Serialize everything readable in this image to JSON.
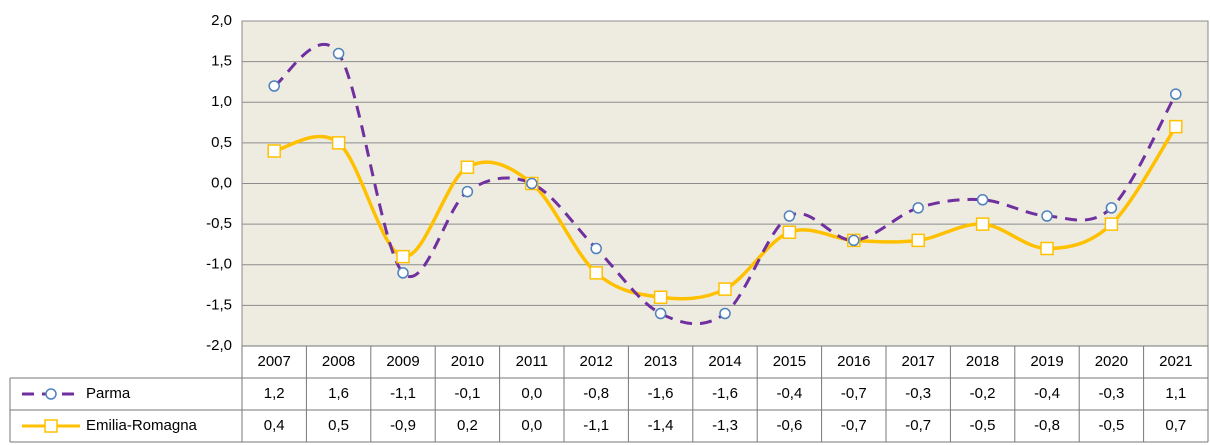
{
  "chart_data": {
    "type": "line",
    "categories": [
      "2007",
      "2008",
      "2009",
      "2010",
      "2011",
      "2012",
      "2013",
      "2014",
      "2015",
      "2016",
      "2017",
      "2018",
      "2019",
      "2020",
      "2021"
    ],
    "series": [
      {
        "name": "Parma",
        "color": "#7030a0",
        "marker_color": "#4f81bd",
        "dashed": true,
        "marker": "circle",
        "values": [
          1.2,
          1.6,
          -1.1,
          -0.1,
          0.0,
          -0.8,
          -1.6,
          -1.6,
          -0.4,
          -0.7,
          -0.3,
          -0.2,
          -0.4,
          -0.3,
          1.1
        ],
        "value_labels": [
          "1,2",
          "1,6",
          "-1,1",
          "-0,1",
          "0,0",
          "-0,8",
          "-1,6",
          "-1,6",
          "-0,4",
          "-0,7",
          "-0,3",
          "-0,2",
          "-0,4",
          "-0,3",
          "1,1"
        ]
      },
      {
        "name": "Emilia-Romagna",
        "color": "#ffc000",
        "marker_color": "#ffc000",
        "dashed": false,
        "marker": "square",
        "values": [
          0.4,
          0.5,
          -0.9,
          0.2,
          0.0,
          -1.1,
          -1.4,
          -1.3,
          -0.6,
          -0.7,
          -0.7,
          -0.5,
          -0.8,
          -0.5,
          0.7
        ],
        "value_labels": [
          "0,4",
          "0,5",
          "-0,9",
          "0,2",
          "0,0",
          "-1,1",
          "-1,4",
          "-1,3",
          "-0,6",
          "-0,7",
          "-0,7",
          "-0,5",
          "-0,8",
          "-0,5",
          "0,7"
        ]
      }
    ],
    "ylim": [
      -2,
      2
    ],
    "yticks": [
      {
        "value": -2,
        "label": "-2,0"
      },
      {
        "value": -1.5,
        "label": "-1,5"
      },
      {
        "value": -1,
        "label": "-1,0"
      },
      {
        "value": -0.5,
        "label": "-0,5"
      },
      {
        "value": 0,
        "label": "0,0"
      },
      {
        "value": 0.5,
        "label": "0,5"
      },
      {
        "value": 1,
        "label": "1,0"
      },
      {
        "value": 1.5,
        "label": "1,5"
      },
      {
        "value": 2,
        "label": "2,0"
      }
    ],
    "grid": true,
    "plot_background": "#eeece1"
  }
}
